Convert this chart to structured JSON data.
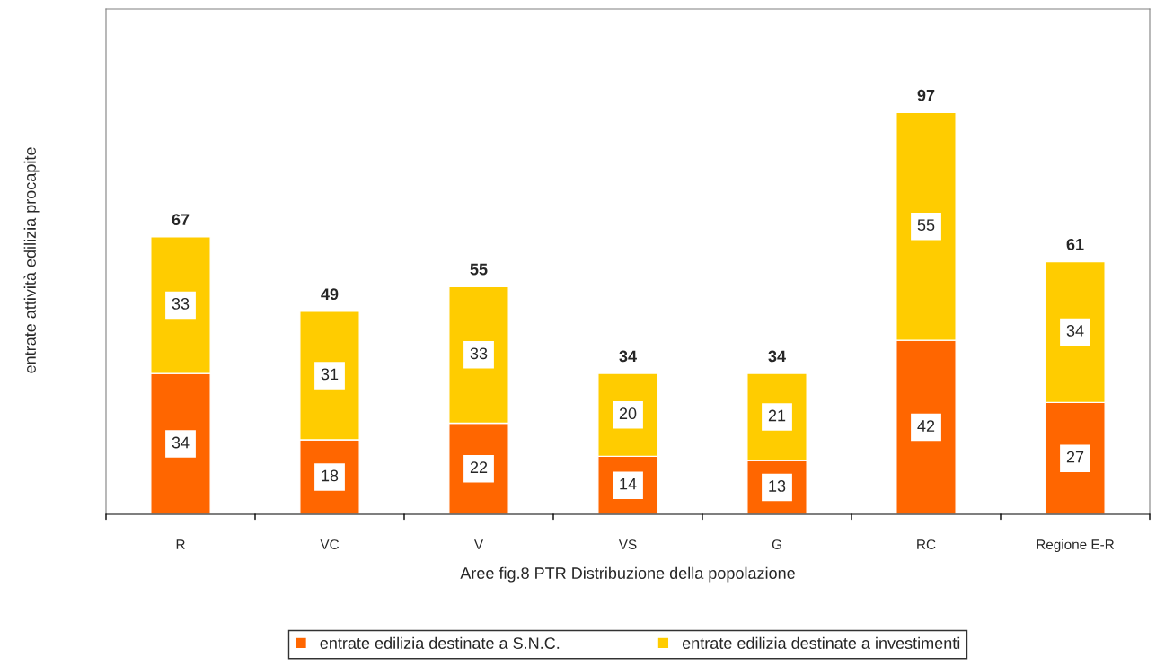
{
  "chart_data": {
    "type": "bar",
    "stacked": true,
    "xlabel": "Aree fig.8 PTR Distribuzione della popolazione",
    "ylabel": "entrate attività edilizia procapite",
    "categories": [
      "R",
      "VC",
      "V",
      "VS",
      "G",
      "RC",
      "Regione E-R"
    ],
    "series": [
      {
        "name": "entrate edilizia destinate a S.N.C.",
        "color": "#ff6600",
        "values": [
          34,
          18,
          22,
          14,
          13,
          42,
          27
        ]
      },
      {
        "name": "entrate edilizia destinate a investimenti",
        "color": "#ffcc00",
        "values": [
          33,
          31,
          33,
          20,
          21,
          55,
          34
        ]
      }
    ],
    "data_labels": true,
    "totals": [
      "67",
      "49",
      "55",
      "34",
      "34",
      "97",
      "61"
    ],
    "ylim": [
      0,
      122
    ],
    "tick_labels": "x",
    "grid": false,
    "legend": "bottom"
  }
}
